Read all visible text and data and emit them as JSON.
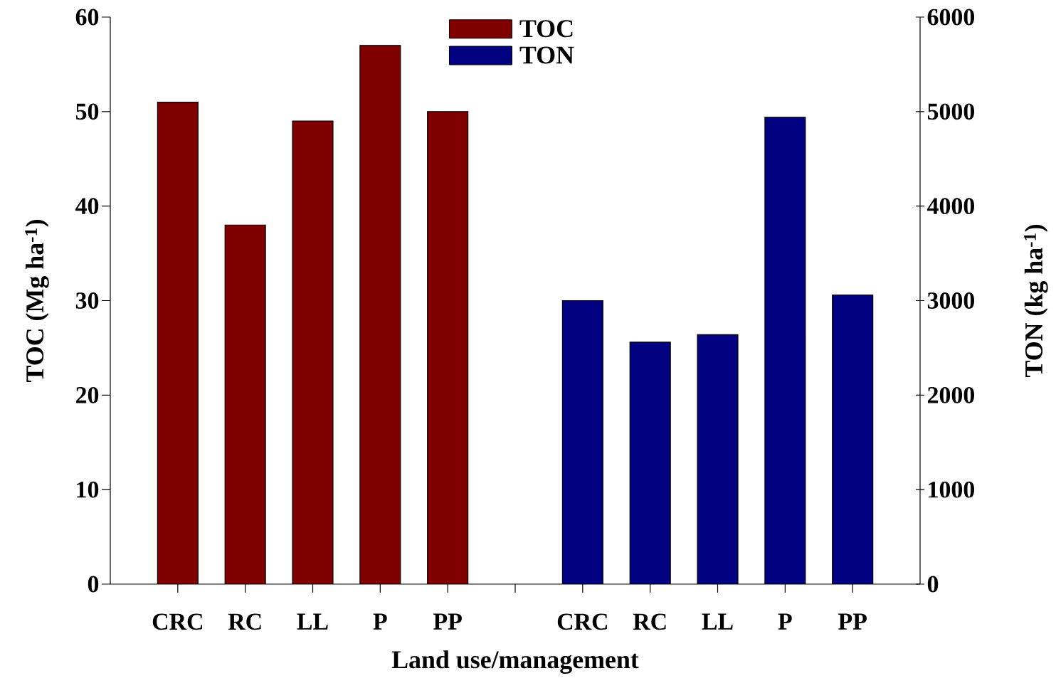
{
  "chart_data": {
    "type": "bar",
    "xlabel": "Land use/management",
    "ylabel": "TOC (Mg ha$^{-1}$)",
    "y2label": "TON (kg ha$^{-1}$)",
    "categories": [
      "CRC",
      "RC",
      "LL",
      "P",
      "PP",
      null,
      "CRC",
      "RC",
      "LL",
      "P",
      "PP"
    ],
    "series": [
      {
        "name": "TOC",
        "color": "#800000",
        "values": [
          51,
          38,
          49,
          57,
          50,
          null,
          null,
          null,
          null,
          null,
          null
        ]
      },
      {
        "name": "TON",
        "color": "#000080",
        "axis": "y2",
        "values": [
          null,
          null,
          null,
          null,
          null,
          null,
          3000,
          2560,
          2640,
          4940,
          3060
        ]
      }
    ],
    "ylim": [
      0,
      60
    ],
    "yticks": [
      0,
      10,
      20,
      30,
      40,
      50,
      60
    ],
    "y2lim": [
      0,
      6000
    ],
    "y2ticks": [
      0,
      1000,
      2000,
      3000,
      4000,
      5000,
      6000
    ],
    "legend": "top",
    "grid": false
  }
}
